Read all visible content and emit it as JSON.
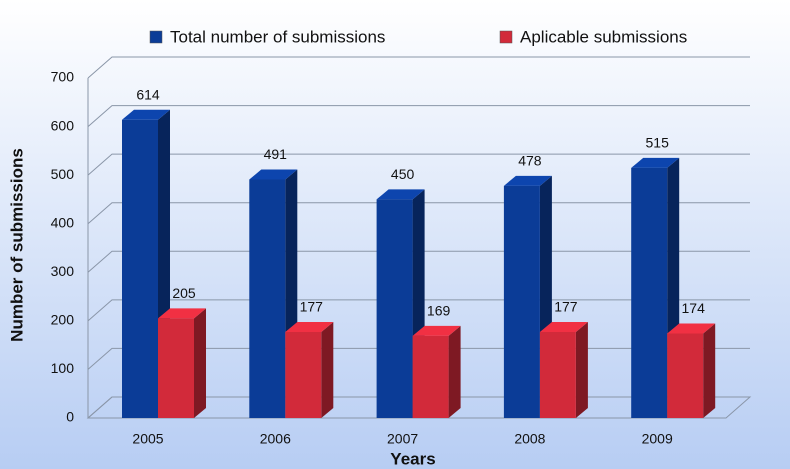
{
  "chart_data": {
    "type": "bar",
    "categories": [
      "2005",
      "2006",
      "2007",
      "2008",
      "2009"
    ],
    "series": [
      {
        "name": "Total number of submissions",
        "color": "#0b3c97",
        "values": [
          614,
          491,
          450,
          478,
          515
        ]
      },
      {
        "name": "Aplicable submissions",
        "color": "#d22a3a",
        "values": [
          205,
          177,
          169,
          177,
          174
        ]
      }
    ],
    "xlabel": "Years",
    "ylabel": "Number of submissions",
    "ylim": [
      0,
      700
    ],
    "yticks": [
      0,
      100,
      200,
      300,
      400,
      500,
      600,
      700
    ],
    "grid": true
  }
}
